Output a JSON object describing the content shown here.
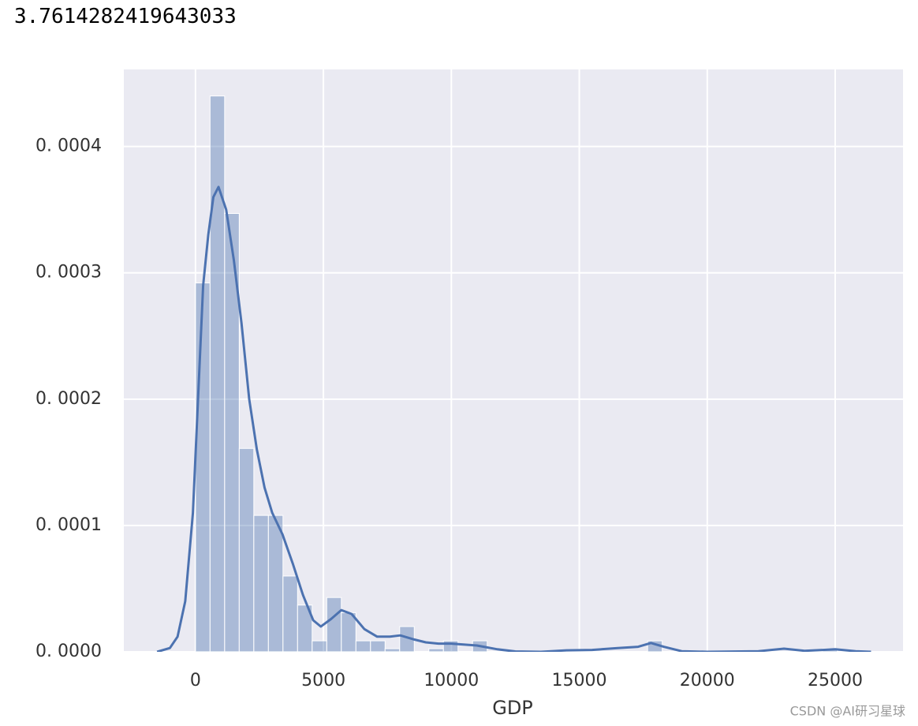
{
  "output": "3.7614282419643033",
  "chart_data": {
    "type": "histogram",
    "xlabel": "GDP",
    "bins": [
      0,
      570,
      1140,
      1710,
      2280,
      2850,
      3420,
      3990,
      4560,
      5130,
      5700,
      6270,
      6840,
      7410,
      7980,
      8550,
      9120,
      9690,
      10260,
      10830,
      11400,
      11970,
      12540,
      13110,
      13680,
      14250,
      14820,
      15390,
      15960,
      16530,
      17100,
      17670,
      18240,
      18810,
      19380,
      19950,
      20520,
      21090,
      21660,
      22230,
      22800,
      23370,
      23940,
      24510,
      25080,
      25650
    ],
    "values": [
      0.000292,
      0.00044,
      0.000347,
      0.000161,
      0.000108,
      0.000108,
      6e-05,
      3.7e-05,
      8.7e-06,
      4.3e-05,
      3.1e-05,
      8.7e-06,
      8.7e-06,
      2.5e-06,
      2e-05,
      0,
      2.5e-06,
      8.7e-06,
      0,
      8.7e-06,
      0,
      0,
      0,
      0,
      0,
      0,
      0,
      0,
      0,
      0,
      0,
      8.7e-06,
      0,
      0,
      0,
      0,
      0,
      0,
      0,
      0,
      0,
      0,
      0,
      2.5e-06,
      0
    ],
    "color": "#4c72b0",
    "kde": {
      "color": "#4c72b0",
      "x": [
        -1500,
        -1000,
        -700,
        -400,
        -100,
        100,
        300,
        500,
        700,
        900,
        1200,
        1500,
        1800,
        2100,
        2400,
        2700,
        3000,
        3400,
        3800,
        4200,
        4600,
        4900,
        5300,
        5700,
        6100,
        6600,
        7100,
        7600,
        8000,
        8500,
        9000,
        9500,
        10000,
        11000,
        11800,
        12500,
        13500,
        14500,
        15500,
        16500,
        17300,
        17800,
        18300,
        19000,
        20000,
        22000,
        23000,
        23800,
        24500,
        25000,
        25800,
        26400
      ],
      "values": [
        0,
        3e-06,
        1.2e-05,
        4e-05,
        0.00011,
        0.0002,
        0.00029,
        0.00033,
        0.00036,
        0.000368,
        0.00035,
        0.00031,
        0.00026,
        0.0002,
        0.00016,
        0.00013,
        0.00011,
        9.3e-05,
        7e-05,
        4.5e-05,
        2.5e-05,
        2e-05,
        2.6e-05,
        3.3e-05,
        3e-05,
        1.8e-05,
        1.2e-05,
        1.2e-05,
        1.3e-05,
        1e-05,
        7.5e-06,
        6.5e-06,
        6.5e-06,
        5e-06,
        2e-06,
        3e-07,
        0,
        1.2e-06,
        1.5e-06,
        3e-06,
        4e-06,
        7e-06,
        4e-06,
        5e-07,
        0,
        5e-07,
        2.5e-06,
        8e-07,
        1.5e-06,
        2e-06,
        5e-07,
        0
      ]
    },
    "xlim": [
      -2800,
      27650
    ],
    "ylim": [
      0,
      0.000461
    ],
    "xticks": [
      0,
      5000,
      10000,
      15000,
      20000,
      25000
    ],
    "yticks": [
      {
        "value": 0,
        "label": "0. 0000"
      },
      {
        "value": 0.0001,
        "label": "0. 0001"
      },
      {
        "value": 0.0002,
        "label": "0. 0002"
      },
      {
        "value": 0.0003,
        "label": "0. 0003"
      },
      {
        "value": 0.0004,
        "label": "0. 0004"
      }
    ],
    "grid": true,
    "background": "#eaeaf2"
  },
  "watermark": "CSDN @AI研习星球"
}
